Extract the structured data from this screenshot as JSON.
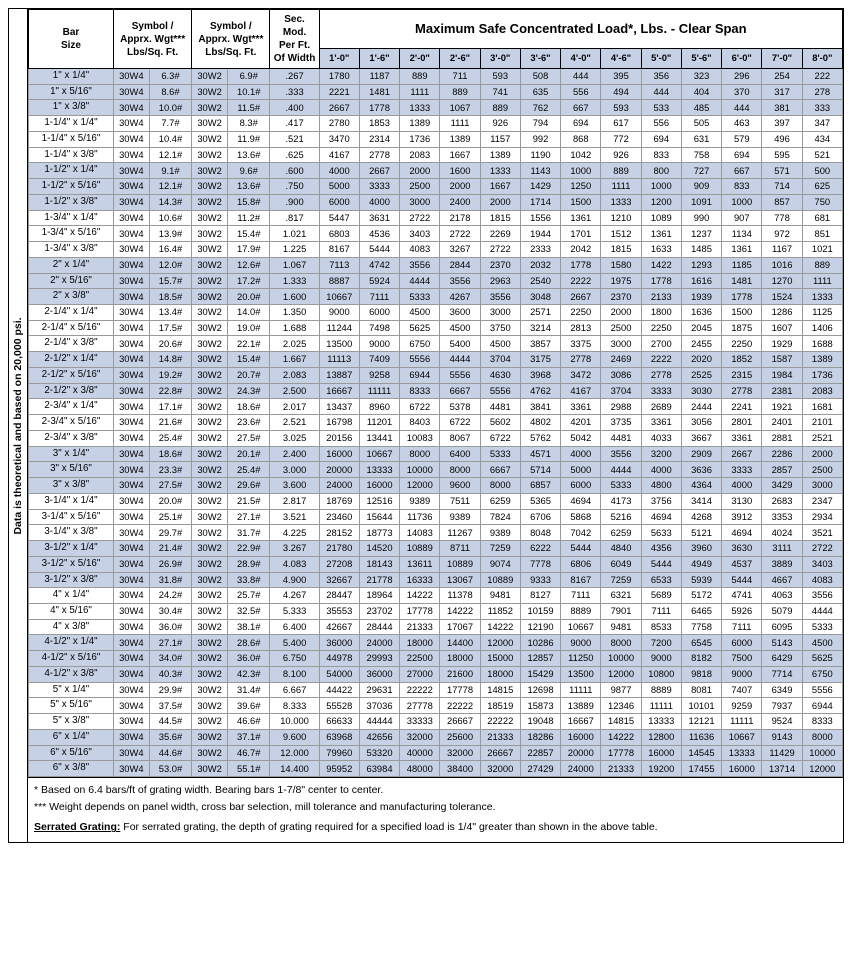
{
  "side_label": "Data is theoretical and based on 20,000 psi.",
  "headers": {
    "bar_size": "Bar\nSize",
    "symbol_wt": "Symbol /\nApprx. Wgt***\nLbs/Sq. Ft.",
    "sec_mod": "Sec. Mod.\nPer Ft.\nOf Width",
    "main": "Maximum Safe Concentrated Load*, Lbs.  -  Clear Span",
    "spans": [
      "1'-0\"",
      "1'-6\"",
      "2'-0\"",
      "2'-6\"",
      "3'-0\"",
      "3'-6\"",
      "4'-0\"",
      "4'-6\"",
      "5'-0\"",
      "5'-6\"",
      "6'-0\"",
      "7'-0\"",
      "8'-0\""
    ]
  },
  "footnotes": {
    "a": "*     Based on 6.4 bars/ft of grating width.  Bearing bars 1-7/8\" center to center.",
    "b": "***  Weight depends on panel width, cross bar selection, mill tolerance and manufacturing tolerance.",
    "c_label": "Serrated Grating:",
    "c_text": "  For serrated grating, the depth of grating required for a specified load is 1/4\" greater than shown in the above table."
  },
  "alt_color": "#c7d1e6",
  "rows": [
    {
      "alt": true,
      "size": "1\" x 1/4\"",
      "s1": "30W4",
      "w1": "6.3#",
      "s2": "30W2",
      "w2": "6.9#",
      "sec": ".267",
      "v": [
        "1780",
        "1187",
        "889",
        "711",
        "593",
        "508",
        "444",
        "395",
        "356",
        "323",
        "296",
        "254",
        "222"
      ]
    },
    {
      "alt": true,
      "size": "1\" x 5/16\"",
      "s1": "30W4",
      "w1": "8.6#",
      "s2": "30W2",
      "w2": "10.1#",
      "sec": ".333",
      "v": [
        "2221",
        "1481",
        "1111",
        "889",
        "741",
        "635",
        "556",
        "494",
        "444",
        "404",
        "370",
        "317",
        "278"
      ]
    },
    {
      "alt": true,
      "size": "1\" x 3/8\"",
      "s1": "30W4",
      "w1": "10.0#",
      "s2": "30W2",
      "w2": "11.5#",
      "sec": ".400",
      "v": [
        "2667",
        "1778",
        "1333",
        "1067",
        "889",
        "762",
        "667",
        "593",
        "533",
        "485",
        "444",
        "381",
        "333"
      ]
    },
    {
      "alt": false,
      "size": "1-1/4\" x 1/4\"",
      "s1": "30W4",
      "w1": "7.7#",
      "s2": "30W2",
      "w2": "8.3#",
      "sec": ".417",
      "v": [
        "2780",
        "1853",
        "1389",
        "1111",
        "926",
        "794",
        "694",
        "617",
        "556",
        "505",
        "463",
        "397",
        "347"
      ]
    },
    {
      "alt": false,
      "size": "1-1/4\" x 5/16\"",
      "s1": "30W4",
      "w1": "10.4#",
      "s2": "30W2",
      "w2": "11.9#",
      "sec": ".521",
      "v": [
        "3470",
        "2314",
        "1736",
        "1389",
        "1157",
        "992",
        "868",
        "772",
        "694",
        "631",
        "579",
        "496",
        "434"
      ]
    },
    {
      "alt": false,
      "size": "1-1/4\" x 3/8\"",
      "s1": "30W4",
      "w1": "12.1#",
      "s2": "30W2",
      "w2": "13.6#",
      "sec": ".625",
      "v": [
        "4167",
        "2778",
        "2083",
        "1667",
        "1389",
        "1190",
        "1042",
        "926",
        "833",
        "758",
        "694",
        "595",
        "521"
      ]
    },
    {
      "alt": true,
      "size": "1-1/2\" x 1/4\"",
      "s1": "30W4",
      "w1": "9.1#",
      "s2": "30W2",
      "w2": "9.6#",
      "sec": ".600",
      "v": [
        "4000",
        "2667",
        "2000",
        "1600",
        "1333",
        "1143",
        "1000",
        "889",
        "800",
        "727",
        "667",
        "571",
        "500"
      ]
    },
    {
      "alt": true,
      "size": "1-1/2\" x 5/16\"",
      "s1": "30W4",
      "w1": "12.1#",
      "s2": "30W2",
      "w2": "13.6#",
      "sec": ".750",
      "v": [
        "5000",
        "3333",
        "2500",
        "2000",
        "1667",
        "1429",
        "1250",
        "1111",
        "1000",
        "909",
        "833",
        "714",
        "625"
      ]
    },
    {
      "alt": true,
      "size": "1-1/2\" x 3/8\"",
      "s1": "30W4",
      "w1": "14.3#",
      "s2": "30W2",
      "w2": "15.8#",
      "sec": ".900",
      "v": [
        "6000",
        "4000",
        "3000",
        "2400",
        "2000",
        "1714",
        "1500",
        "1333",
        "1200",
        "1091",
        "1000",
        "857",
        "750"
      ]
    },
    {
      "alt": false,
      "size": "1-3/4\" x 1/4\"",
      "s1": "30W4",
      "w1": "10.6#",
      "s2": "30W2",
      "w2": "11.2#",
      "sec": ".817",
      "v": [
        "5447",
        "3631",
        "2722",
        "2178",
        "1815",
        "1556",
        "1361",
        "1210",
        "1089",
        "990",
        "907",
        "778",
        "681"
      ]
    },
    {
      "alt": false,
      "size": "1-3/4\" x 5/16\"",
      "s1": "30W4",
      "w1": "13.9#",
      "s2": "30W2",
      "w2": "15.4#",
      "sec": "1.021",
      "v": [
        "6803",
        "4536",
        "3403",
        "2722",
        "2269",
        "1944",
        "1701",
        "1512",
        "1361",
        "1237",
        "1134",
        "972",
        "851"
      ]
    },
    {
      "alt": false,
      "size": "1-3/4\" x 3/8\"",
      "s1": "30W4",
      "w1": "16.4#",
      "s2": "30W2",
      "w2": "17.9#",
      "sec": "1.225",
      "v": [
        "8167",
        "5444",
        "4083",
        "3267",
        "2722",
        "2333",
        "2042",
        "1815",
        "1633",
        "1485",
        "1361",
        "1167",
        "1021"
      ]
    },
    {
      "alt": true,
      "size": "2\" x 1/4\"",
      "s1": "30W4",
      "w1": "12.0#",
      "s2": "30W2",
      "w2": "12.6#",
      "sec": "1.067",
      "v": [
        "7113",
        "4742",
        "3556",
        "2844",
        "2370",
        "2032",
        "1778",
        "1580",
        "1422",
        "1293",
        "1185",
        "1016",
        "889"
      ]
    },
    {
      "alt": true,
      "size": "2\" x 5/16\"",
      "s1": "30W4",
      "w1": "15.7#",
      "s2": "30W2",
      "w2": "17.2#",
      "sec": "1.333",
      "v": [
        "8887",
        "5924",
        "4444",
        "3556",
        "2963",
        "2540",
        "2222",
        "1975",
        "1778",
        "1616",
        "1481",
        "1270",
        "1111"
      ]
    },
    {
      "alt": true,
      "size": "2\" x 3/8\"",
      "s1": "30W4",
      "w1": "18.5#",
      "s2": "30W2",
      "w2": "20.0#",
      "sec": "1.600",
      "v": [
        "10667",
        "7111",
        "5333",
        "4267",
        "3556",
        "3048",
        "2667",
        "2370",
        "2133",
        "1939",
        "1778",
        "1524",
        "1333"
      ]
    },
    {
      "alt": false,
      "size": "2-1/4\" x 1/4\"",
      "s1": "30W4",
      "w1": "13.4#",
      "s2": "30W2",
      "w2": "14.0#",
      "sec": "1.350",
      "v": [
        "9000",
        "6000",
        "4500",
        "3600",
        "3000",
        "2571",
        "2250",
        "2000",
        "1800",
        "1636",
        "1500",
        "1286",
        "1125"
      ]
    },
    {
      "alt": false,
      "size": "2-1/4\" x 5/16\"",
      "s1": "30W4",
      "w1": "17.5#",
      "s2": "30W2",
      "w2": "19.0#",
      "sec": "1.688",
      "v": [
        "11244",
        "7498",
        "5625",
        "4500",
        "3750",
        "3214",
        "2813",
        "2500",
        "2250",
        "2045",
        "1875",
        "1607",
        "1406"
      ]
    },
    {
      "alt": false,
      "size": "2-1/4\" x 3/8\"",
      "s1": "30W4",
      "w1": "20.6#",
      "s2": "30W2",
      "w2": "22.1#",
      "sec": "2.025",
      "v": [
        "13500",
        "9000",
        "6750",
        "5400",
        "4500",
        "3857",
        "3375",
        "3000",
        "2700",
        "2455",
        "2250",
        "1929",
        "1688"
      ]
    },
    {
      "alt": true,
      "size": "2-1/2\" x 1/4\"",
      "s1": "30W4",
      "w1": "14.8#",
      "s2": "30W2",
      "w2": "15.4#",
      "sec": "1.667",
      "v": [
        "11113",
        "7409",
        "5556",
        "4444",
        "3704",
        "3175",
        "2778",
        "2469",
        "2222",
        "2020",
        "1852",
        "1587",
        "1389"
      ]
    },
    {
      "alt": true,
      "size": "2-1/2\" x 5/16\"",
      "s1": "30W4",
      "w1": "19.2#",
      "s2": "30W2",
      "w2": "20.7#",
      "sec": "2.083",
      "v": [
        "13887",
        "9258",
        "6944",
        "5556",
        "4630",
        "3968",
        "3472",
        "3086",
        "2778",
        "2525",
        "2315",
        "1984",
        "1736"
      ]
    },
    {
      "alt": true,
      "size": "2-1/2\" x 3/8\"",
      "s1": "30W4",
      "w1": "22.8#",
      "s2": "30W2",
      "w2": "24.3#",
      "sec": "2.500",
      "v": [
        "16667",
        "11111",
        "8333",
        "6667",
        "5556",
        "4762",
        "4167",
        "3704",
        "3333",
        "3030",
        "2778",
        "2381",
        "2083"
      ]
    },
    {
      "alt": false,
      "size": "2-3/4\" x 1/4\"",
      "s1": "30W4",
      "w1": "17.1#",
      "s2": "30W2",
      "w2": "18.6#",
      "sec": "2.017",
      "v": [
        "13437",
        "8960",
        "6722",
        "5378",
        "4481",
        "3841",
        "3361",
        "2988",
        "2689",
        "2444",
        "2241",
        "1921",
        "1681"
      ]
    },
    {
      "alt": false,
      "size": "2-3/4\" x 5/16\"",
      "s1": "30W4",
      "w1": "21.6#",
      "s2": "30W2",
      "w2": "23.6#",
      "sec": "2.521",
      "v": [
        "16798",
        "11201",
        "8403",
        "6722",
        "5602",
        "4802",
        "4201",
        "3735",
        "3361",
        "3056",
        "2801",
        "2401",
        "2101"
      ]
    },
    {
      "alt": false,
      "size": "2-3/4\" x 3/8\"",
      "s1": "30W4",
      "w1": "25.4#",
      "s2": "30W2",
      "w2": "27.5#",
      "sec": "3.025",
      "v": [
        "20156",
        "13441",
        "10083",
        "8067",
        "6722",
        "5762",
        "5042",
        "4481",
        "4033",
        "3667",
        "3361",
        "2881",
        "2521"
      ]
    },
    {
      "alt": true,
      "size": "3\" x 1/4\"",
      "s1": "30W4",
      "w1": "18.6#",
      "s2": "30W2",
      "w2": "20.1#",
      "sec": "2.400",
      "v": [
        "16000",
        "10667",
        "8000",
        "6400",
        "5333",
        "4571",
        "4000",
        "3556",
        "3200",
        "2909",
        "2667",
        "2286",
        "2000"
      ]
    },
    {
      "alt": true,
      "size": "3\" x 5/16\"",
      "s1": "30W4",
      "w1": "23.3#",
      "s2": "30W2",
      "w2": "25.4#",
      "sec": "3.000",
      "v": [
        "20000",
        "13333",
        "10000",
        "8000",
        "6667",
        "5714",
        "5000",
        "4444",
        "4000",
        "3636",
        "3333",
        "2857",
        "2500"
      ]
    },
    {
      "alt": true,
      "size": "3\" x 3/8\"",
      "s1": "30W4",
      "w1": "27.5#",
      "s2": "30W2",
      "w2": "29.6#",
      "sec": "3.600",
      "v": [
        "24000",
        "16000",
        "12000",
        "9600",
        "8000",
        "6857",
        "6000",
        "5333",
        "4800",
        "4364",
        "4000",
        "3429",
        "3000"
      ]
    },
    {
      "alt": false,
      "size": "3-1/4\" x 1/4\"",
      "s1": "30W4",
      "w1": "20.0#",
      "s2": "30W2",
      "w2": "21.5#",
      "sec": "2.817",
      "v": [
        "18769",
        "12516",
        "9389",
        "7511",
        "6259",
        "5365",
        "4694",
        "4173",
        "3756",
        "3414",
        "3130",
        "2683",
        "2347"
      ]
    },
    {
      "alt": false,
      "size": "3-1/4\" x 5/16\"",
      "s1": "30W4",
      "w1": "25.1#",
      "s2": "30W2",
      "w2": "27.1#",
      "sec": "3.521",
      "v": [
        "23460",
        "15644",
        "11736",
        "9389",
        "7824",
        "6706",
        "5868",
        "5216",
        "4694",
        "4268",
        "3912",
        "3353",
        "2934"
      ]
    },
    {
      "alt": false,
      "size": "3-1/4\" x 3/8\"",
      "s1": "30W4",
      "w1": "29.7#",
      "s2": "30W2",
      "w2": "31.7#",
      "sec": "4.225",
      "v": [
        "28152",
        "18773",
        "14083",
        "11267",
        "9389",
        "8048",
        "7042",
        "6259",
        "5633",
        "5121",
        "4694",
        "4024",
        "3521"
      ]
    },
    {
      "alt": true,
      "size": "3-1/2\" x 1/4\"",
      "s1": "30W4",
      "w1": "21.4#",
      "s2": "30W2",
      "w2": "22.9#",
      "sec": "3.267",
      "v": [
        "21780",
        "14520",
        "10889",
        "8711",
        "7259",
        "6222",
        "5444",
        "4840",
        "4356",
        "3960",
        "3630",
        "3111",
        "2722"
      ]
    },
    {
      "alt": true,
      "size": "3-1/2\" x 5/16\"",
      "s1": "30W4",
      "w1": "26.9#",
      "s2": "30W2",
      "w2": "28.9#",
      "sec": "4.083",
      "v": [
        "27208",
        "18143",
        "13611",
        "10889",
        "9074",
        "7778",
        "6806",
        "6049",
        "5444",
        "4949",
        "4537",
        "3889",
        "3403"
      ]
    },
    {
      "alt": true,
      "size": "3-1/2\" x 3/8\"",
      "s1": "30W4",
      "w1": "31.8#",
      "s2": "30W2",
      "w2": "33.8#",
      "sec": "4.900",
      "v": [
        "32667",
        "21778",
        "16333",
        "13067",
        "10889",
        "9333",
        "8167",
        "7259",
        "6533",
        "5939",
        "5444",
        "4667",
        "4083"
      ]
    },
    {
      "alt": false,
      "size": "4\" x 1/4\"",
      "s1": "30W4",
      "w1": "24.2#",
      "s2": "30W2",
      "w2": "25.7#",
      "sec": "4.267",
      "v": [
        "28447",
        "18964",
        "14222",
        "11378",
        "9481",
        "8127",
        "7111",
        "6321",
        "5689",
        "5172",
        "4741",
        "4063",
        "3556"
      ]
    },
    {
      "alt": false,
      "size": "4\" x 5/16\"",
      "s1": "30W4",
      "w1": "30.4#",
      "s2": "30W2",
      "w2": "32.5#",
      "sec": "5.333",
      "v": [
        "35553",
        "23702",
        "17778",
        "14222",
        "11852",
        "10159",
        "8889",
        "7901",
        "7111",
        "6465",
        "5926",
        "5079",
        "4444"
      ]
    },
    {
      "alt": false,
      "size": "4\" x 3/8\"",
      "s1": "30W4",
      "w1": "36.0#",
      "s2": "30W2",
      "w2": "38.1#",
      "sec": "6.400",
      "v": [
        "42667",
        "28444",
        "21333",
        "17067",
        "14222",
        "12190",
        "10667",
        "9481",
        "8533",
        "7758",
        "7111",
        "6095",
        "5333"
      ]
    },
    {
      "alt": true,
      "size": "4-1/2\" x 1/4\"",
      "s1": "30W4",
      "w1": "27.1#",
      "s2": "30W2",
      "w2": "28.6#",
      "sec": "5.400",
      "v": [
        "36000",
        "24000",
        "18000",
        "14400",
        "12000",
        "10286",
        "9000",
        "8000",
        "7200",
        "6545",
        "6000",
        "5143",
        "4500"
      ]
    },
    {
      "alt": true,
      "size": "4-1/2\" x 5/16\"",
      "s1": "30W4",
      "w1": "34.0#",
      "s2": "30W2",
      "w2": "36.0#",
      "sec": "6.750",
      "v": [
        "44978",
        "29993",
        "22500",
        "18000",
        "15000",
        "12857",
        "11250",
        "10000",
        "9000",
        "8182",
        "7500",
        "6429",
        "5625"
      ]
    },
    {
      "alt": true,
      "size": "4-1/2\" x 3/8\"",
      "s1": "30W4",
      "w1": "40.3#",
      "s2": "30W2",
      "w2": "42.3#",
      "sec": "8.100",
      "v": [
        "54000",
        "36000",
        "27000",
        "21600",
        "18000",
        "15429",
        "13500",
        "12000",
        "10800",
        "9818",
        "9000",
        "7714",
        "6750"
      ]
    },
    {
      "alt": false,
      "size": "5\" x 1/4\"",
      "s1": "30W4",
      "w1": "29.9#",
      "s2": "30W2",
      "w2": "31.4#",
      "sec": "6.667",
      "v": [
        "44422",
        "29631",
        "22222",
        "17778",
        "14815",
        "12698",
        "11111",
        "9877",
        "8889",
        "8081",
        "7407",
        "6349",
        "5556"
      ]
    },
    {
      "alt": false,
      "size": "5\" x 5/16\"",
      "s1": "30W4",
      "w1": "37.5#",
      "s2": "30W2",
      "w2": "39.6#",
      "sec": "8.333",
      "v": [
        "55528",
        "37036",
        "27778",
        "22222",
        "18519",
        "15873",
        "13889",
        "12346",
        "11111",
        "10101",
        "9259",
        "7937",
        "6944"
      ]
    },
    {
      "alt": false,
      "size": "5\" x 3/8\"",
      "s1": "30W4",
      "w1": "44.5#",
      "s2": "30W2",
      "w2": "46.6#",
      "sec": "10.000",
      "v": [
        "66633",
        "44444",
        "33333",
        "26667",
        "22222",
        "19048",
        "16667",
        "14815",
        "13333",
        "12121",
        "11111",
        "9524",
        "8333"
      ]
    },
    {
      "alt": true,
      "size": "6\" x 1/4\"",
      "s1": "30W4",
      "w1": "35.6#",
      "s2": "30W2",
      "w2": "37.1#",
      "sec": "9.600",
      "v": [
        "63968",
        "42656",
        "32000",
        "25600",
        "21333",
        "18286",
        "16000",
        "14222",
        "12800",
        "11636",
        "10667",
        "9143",
        "8000"
      ]
    },
    {
      "alt": true,
      "size": "6\" x 5/16\"",
      "s1": "30W4",
      "w1": "44.6#",
      "s2": "30W2",
      "w2": "46.7#",
      "sec": "12.000",
      "v": [
        "79960",
        "53320",
        "40000",
        "32000",
        "26667",
        "22857",
        "20000",
        "17778",
        "16000",
        "14545",
        "13333",
        "11429",
        "10000"
      ]
    },
    {
      "alt": true,
      "size": "6\" x 3/8\"",
      "s1": "30W4",
      "w1": "53.0#",
      "s2": "30W2",
      "w2": "55.1#",
      "sec": "14.400",
      "v": [
        "95952",
        "63984",
        "48000",
        "38400",
        "32000",
        "27429",
        "24000",
        "21333",
        "19200",
        "17455",
        "16000",
        "13714",
        "12000"
      ]
    }
  ]
}
